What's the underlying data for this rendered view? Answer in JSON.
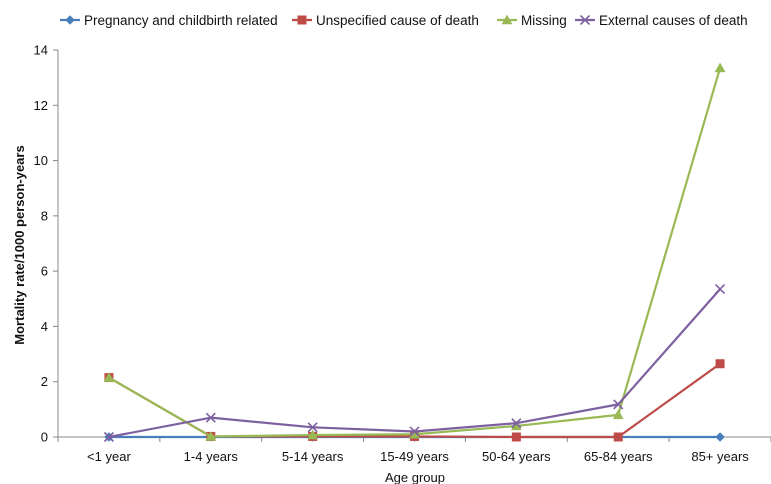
{
  "chart_data": {
    "type": "line",
    "title": "",
    "xlabel": "Age group",
    "ylabel": "Mortality rate/1000 person-years",
    "categories": [
      "<1 year",
      "1-4 years",
      "5-14 years",
      "15-49 years",
      "50-64 years",
      "65-84 years",
      "85+ years"
    ],
    "ylim": [
      0,
      14
    ],
    "yticks": [
      0,
      2,
      4,
      6,
      8,
      10,
      12,
      14
    ],
    "grid": false,
    "legend_position": "top",
    "series": [
      {
        "name": "Pregnancy and childbirth related",
        "color": "#4a7ebb",
        "marker": "diamond",
        "values": [
          0,
          0,
          0,
          0,
          0,
          0,
          0
        ]
      },
      {
        "name": "Unspecified cause of death",
        "color": "#be4b48",
        "marker": "square",
        "values": [
          2.15,
          0.02,
          0.02,
          0.02,
          0,
          0,
          2.65
        ]
      },
      {
        "name": "Missing",
        "color": "#98b954",
        "marker": "triangle",
        "values": [
          2.15,
          0.02,
          0.07,
          0.1,
          0.4,
          0.8,
          13.35
        ]
      },
      {
        "name": "External causes of death",
        "color": "#7d60a0",
        "marker": "x",
        "values": [
          0,
          0.7,
          0.35,
          0.2,
          0.5,
          1.18,
          5.35
        ]
      }
    ]
  }
}
